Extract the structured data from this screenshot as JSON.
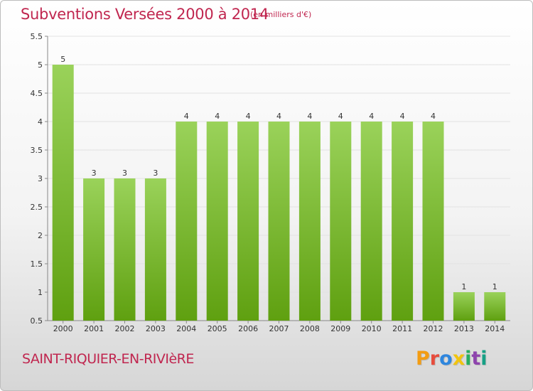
{
  "header": {
    "title": "Subventions Versées 2000 à 2014",
    "unit": "(en milliers d'€)"
  },
  "footer": {
    "commune": "SAINT-RIQUIER-EN-RIVIèRE",
    "logo_letters": [
      "P",
      "r",
      "o",
      "x",
      "i",
      "t",
      "i"
    ],
    "logo_colors": [
      "#f39c12",
      "#e74c3c",
      "#2e86de",
      "#f1c40f",
      "#27ae60",
      "#8e44ad",
      "#16a085"
    ]
  },
  "colors": {
    "accent": "#c0264f",
    "bar_top": "#9ad25a",
    "bar_bottom": "#5fa010"
  },
  "chart_data": {
    "type": "bar",
    "title": "Subventions Versées 2000 à 2014",
    "subtitle": "(en milliers d'€)",
    "xlabel": "",
    "ylabel": "",
    "categories": [
      "2000",
      "2001",
      "2002",
      "2003",
      "2004",
      "2005",
      "2006",
      "2007",
      "2008",
      "2009",
      "2010",
      "2011",
      "2012",
      "2013",
      "2014"
    ],
    "values": [
      5,
      3,
      3,
      3,
      4,
      4,
      4,
      4,
      4,
      4,
      4,
      4,
      4,
      1,
      1
    ],
    "data_labels": [
      "5",
      "3",
      "3",
      "3",
      "4",
      "4",
      "4",
      "4",
      "4",
      "4",
      "4",
      "4",
      "4",
      "1",
      "1"
    ],
    "ylim": [
      0.5,
      5.5
    ],
    "yticks": [
      0.5,
      1,
      1.5,
      2,
      2.5,
      3,
      3.5,
      4,
      4.5,
      5,
      5.5
    ],
    "ytick_labels": [
      "0.5",
      "1",
      "1.5",
      "2",
      "2.5",
      "3",
      "3.5",
      "4",
      "4.5",
      "5",
      "5.5"
    ],
    "grid": true,
    "legend": "none"
  }
}
